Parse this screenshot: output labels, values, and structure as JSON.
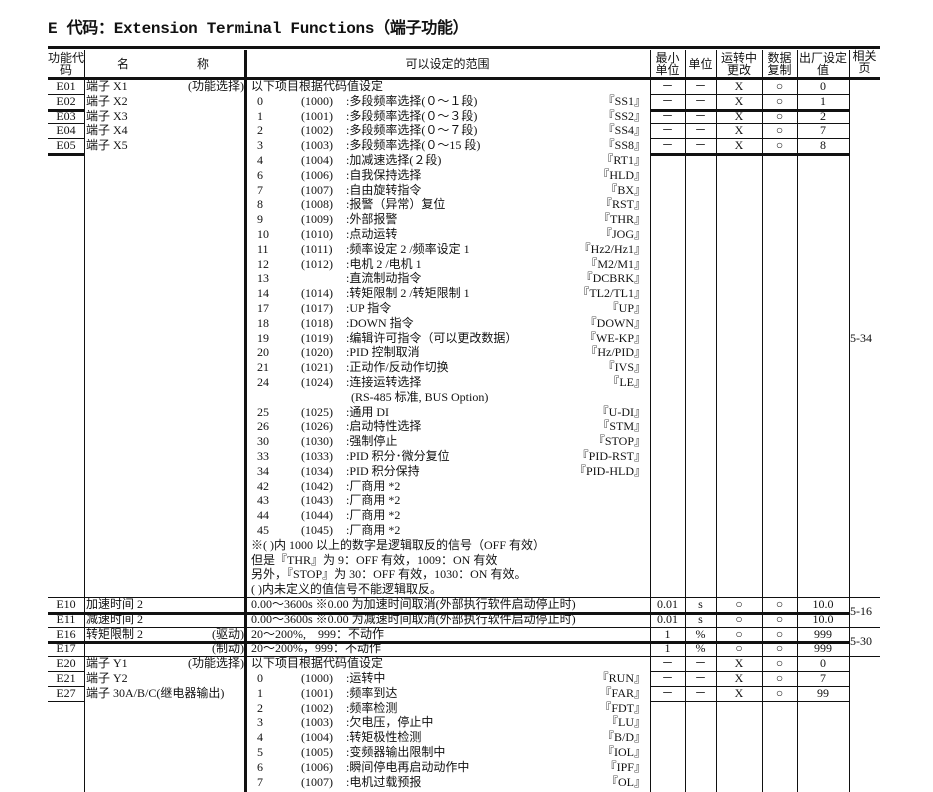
{
  "title": "E 代码：Extension Terminal Functions（端子功能）",
  "headers": {
    "code": "功能代码",
    "name_a": "名",
    "name_b": "称",
    "range": "可以设定的范围",
    "min": "最小单位",
    "unit": "单位",
    "run": "运转中更改",
    "copy": "数据复制",
    "default": "出厂设定值",
    "page": "相关页"
  },
  "groups": [
    {
      "page": "5-34",
      "params": [
        {
          "code": "E01",
          "name": "端子 X1",
          "note": "(功能选择)",
          "min": "－",
          "unit": "－",
          "run": "X",
          "copy": "○",
          "default": "0"
        },
        {
          "code": "E02",
          "name": "端子 X2",
          "note": "",
          "min": "－",
          "unit": "－",
          "run": "X",
          "copy": "○",
          "default": "1"
        },
        {
          "code": "E03",
          "name": "端子 X3",
          "note": "",
          "min": "－",
          "unit": "－",
          "run": "X",
          "copy": "○",
          "default": "2"
        },
        {
          "code": "E04",
          "name": "端子 X4",
          "note": "",
          "min": "－",
          "unit": "－",
          "run": "X",
          "copy": "○",
          "default": "7"
        },
        {
          "code": "E05",
          "name": "端子 X5",
          "note": "",
          "min": "－",
          "unit": "－",
          "run": "X",
          "copy": "○",
          "default": "8"
        }
      ],
      "lines": [
        {
          "text": "以下项目根据代码值设定"
        },
        {
          "n": "0",
          "code": "(1000)",
          "text": ":多段频率选择(０～１段)",
          "tag": "『SS1』"
        },
        {
          "n": "1",
          "code": "(1001)",
          "text": ":多段频率选择(０～３段)",
          "tag": "『SS2』"
        },
        {
          "n": "2",
          "code": "(1002)",
          "text": ":多段频率选择(０～７段)",
          "tag": "『SS4』"
        },
        {
          "n": "3",
          "code": "(1003)",
          "text": ":多段频率选择(０～15 段)",
          "tag": "『SS8』"
        },
        {
          "n": "4",
          "code": "(1004)",
          "text": ":加减速选择(２段)",
          "tag": "『RT1』"
        },
        {
          "n": "6",
          "code": "(1006)",
          "text": ":自我保持选择",
          "tag": "『HLD』"
        },
        {
          "n": "7",
          "code": "(1007)",
          "text": ":自由旋转指令",
          "tag": "『BX』"
        },
        {
          "n": "8",
          "code": "(1008)",
          "text": ":报警（异常）复位",
          "tag": "『RST』"
        },
        {
          "n": "9",
          "code": "(1009)",
          "text": ":外部报警",
          "tag": "『THR』"
        },
        {
          "n": "10",
          "code": "(1010)",
          "text": ":点动运转",
          "tag": "『JOG』"
        },
        {
          "n": "11",
          "code": "(1011)",
          "text": ":频率设定 2 /频率设定 1",
          "tag": "『Hz2/Hz1』"
        },
        {
          "n": "12",
          "code": "(1012)",
          "text": ":电机 2 /电机 1",
          "tag": "『M2/M1』"
        },
        {
          "n": "13",
          "code": "",
          "text": ":直流制动指令",
          "tag": "『DCBRK』"
        },
        {
          "n": "14",
          "code": "(1014)",
          "text": ":转矩限制 2 /转矩限制 1",
          "tag": "『TL2/TL1』"
        },
        {
          "n": "17",
          "code": "(1017)",
          "text": ":UP 指令",
          "tag": "『UP』"
        },
        {
          "n": "18",
          "code": "(1018)",
          "text": ":DOWN 指令",
          "tag": "『DOWN』"
        },
        {
          "n": "19",
          "code": "(1019)",
          "text": ":编辑许可指令（可以更改数据）",
          "tag": "『WE-KP』"
        },
        {
          "n": "20",
          "code": "(1020)",
          "text": ":PID 控制取消",
          "tag": "『Hz/PID』"
        },
        {
          "n": "21",
          "code": "(1021)",
          "text": ":正动作/反动作切换",
          "tag": "『IVS』"
        },
        {
          "n": "24",
          "code": "(1024)",
          "text": ":连接运转选择",
          "tag": "『LE』"
        },
        {
          "sub": "(RS-485 标准, BUS Option)"
        },
        {
          "n": "25",
          "code": "(1025)",
          "text": ":通用 DI",
          "tag": "『U-DI』"
        },
        {
          "n": "26",
          "code": "(1026)",
          "text": ":启动特性选择",
          "tag": "『STM』"
        },
        {
          "n": "30",
          "code": "(1030)",
          "text": ":强制停止",
          "tag": "『STOP』"
        },
        {
          "n": "33",
          "code": "(1033)",
          "text": ":PID 积分･微分复位",
          "tag": "『PID-RST』"
        },
        {
          "n": "34",
          "code": "(1034)",
          "text": ":PID 积分保持",
          "tag": "『PID-HLD』"
        },
        {
          "n": "42",
          "code": "(1042)",
          "text": ":厂商用 *2"
        },
        {
          "n": "43",
          "code": "(1043)",
          "text": ":厂商用 *2"
        },
        {
          "n": "44",
          "code": "(1044)",
          "text": ":厂商用 *2"
        },
        {
          "n": "45",
          "code": "(1045)",
          "text": ":厂商用 *2"
        },
        {
          "text": "※( )内 1000 以上的数字是逻辑取反的信号（OFF 有效）"
        },
        {
          "text": "但是『THR』为 9：OFF 有效，1009：ON 有效"
        },
        {
          "text": "另外，『STOP』为 30：OFF 有效，1030：ON 有效。"
        },
        {
          "text": "( )内未定义的值信号不能逻辑取反。"
        }
      ]
    },
    {
      "page": "5-16",
      "params": [
        {
          "code": "E10",
          "name": "加速时间 2",
          "note": "",
          "min": "0.01",
          "unit": "s",
          "run": "○",
          "copy": "○",
          "default": "10.0"
        },
        {
          "code": "E11",
          "name": "减速时间 2",
          "note": "",
          "min": "0.01",
          "unit": "s",
          "run": "○",
          "copy": "○",
          "default": "10.0"
        }
      ],
      "lines": [
        {
          "text": "0.00～3600s ※0.00 为加速时间取消(外部执行软件启动停止时)"
        },
        {
          "text": "0.00～3600s ※0.00 为减速时间取消(外部执行软件启动停止时)"
        }
      ]
    },
    {
      "page": "5-30",
      "params": [
        {
          "code": "E16",
          "name": "转矩限制 2",
          "note": "(驱动)",
          "min": "1",
          "unit": "%",
          "run": "○",
          "copy": "○",
          "default": "999"
        },
        {
          "code": "E17",
          "name": "",
          "note": "(制动)",
          "min": "1",
          "unit": "%",
          "run": "○",
          "copy": "○",
          "default": "999"
        }
      ],
      "lines": [
        {
          "text": "20～200%,　999：不动作"
        },
        {
          "text": "20～200%，999：不动作"
        }
      ]
    },
    {
      "page": "",
      "params": [
        {
          "code": "E20",
          "name": "端子 Y1",
          "note": "(功能选择)",
          "min": "－",
          "unit": "－",
          "run": "X",
          "copy": "○",
          "default": "0"
        },
        {
          "code": "E21",
          "name": "端子 Y2",
          "note": "",
          "min": "－",
          "unit": "－",
          "run": "X",
          "copy": "○",
          "default": "7"
        },
        {
          "code": "E27",
          "name": "端子 30A/B/C(继电器输出)",
          "note": "",
          "min": "－",
          "unit": "－",
          "run": "X",
          "copy": "○",
          "default": "99"
        }
      ],
      "lines": [
        {
          "text": "以下项目根据代码值设定"
        },
        {
          "n": "0",
          "code": "(1000)",
          "text": ":运转中",
          "tag": "『RUN』"
        },
        {
          "n": "1",
          "code": "(1001)",
          "text": ":频率到达",
          "tag": "『FAR』"
        },
        {
          "n": "2",
          "code": "(1002)",
          "text": ":频率检测",
          "tag": "『FDT』"
        },
        {
          "n": "3",
          "code": "(1003)",
          "text": ":欠电压，停止中",
          "tag": "『LU』"
        },
        {
          "n": "4",
          "code": "(1004)",
          "text": ":转矩极性检测",
          "tag": "『B/D』"
        },
        {
          "n": "5",
          "code": "(1005)",
          "text": ":变频器输出限制中",
          "tag": "『IOL』"
        },
        {
          "n": "6",
          "code": "(1006)",
          "text": ":瞬间停电再启动动作中",
          "tag": "『IPF』"
        },
        {
          "n": "7",
          "code": "(1007)",
          "text": ":电机过载预报",
          "tag": "『OL』"
        }
      ]
    }
  ]
}
